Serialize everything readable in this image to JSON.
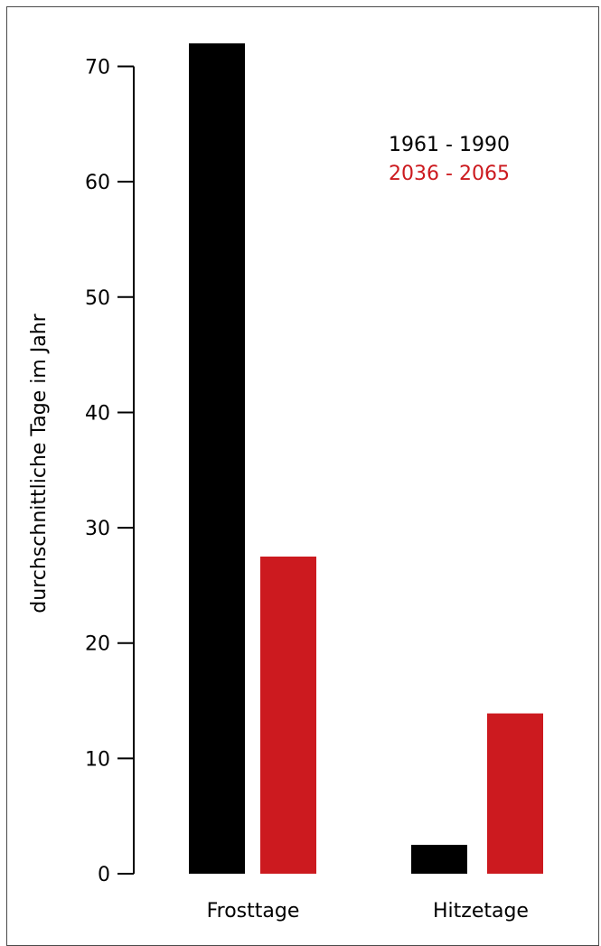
{
  "chart_data": {
    "type": "bar",
    "categories": [
      "Frosttage",
      "Hitzetage"
    ],
    "series": [
      {
        "name": "1961 - 1990",
        "values": [
          72,
          2.5
        ],
        "color": "#000000"
      },
      {
        "name": "2036 - 2065",
        "values": [
          27.5,
          13.9
        ],
        "color": "#cc1a1f"
      }
    ],
    "title": "",
    "xlabel": "",
    "ylabel": "durchschnittliche Tage im Jahr",
    "ylim": [
      0,
      72
    ],
    "yticks": [
      0,
      10,
      20,
      30,
      40,
      50,
      60,
      70
    ],
    "grid": false,
    "legend_position": "top-right"
  }
}
